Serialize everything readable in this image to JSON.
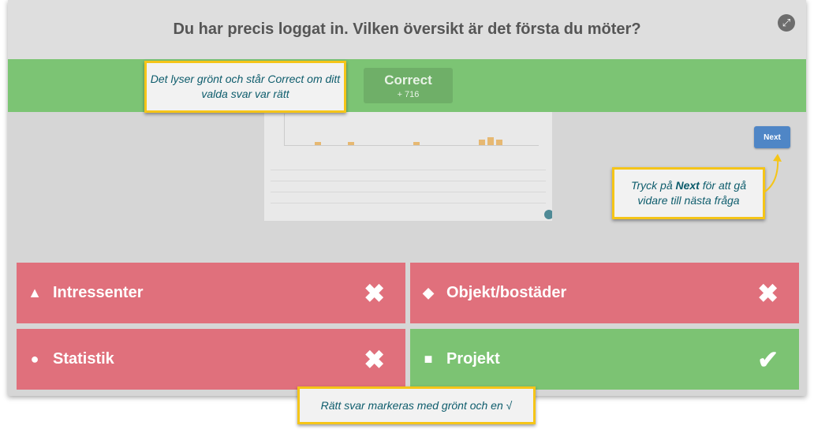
{
  "question": "Du har precis loggat in. Vilken översikt är det första du möter?",
  "result": {
    "label": "Correct",
    "points": "+ 716"
  },
  "next_label": "Next",
  "answers": [
    {
      "shape": "triangle",
      "label": "Intressenter",
      "correct": false
    },
    {
      "shape": "diamond",
      "label": "Objekt/bostäder",
      "correct": false
    },
    {
      "shape": "circle",
      "label": "Statistik",
      "correct": false
    },
    {
      "shape": "square",
      "label": "Projekt",
      "correct": true
    }
  ],
  "callouts": {
    "correct": "Det lyser grönt och står Correct om ditt valda svar var rätt",
    "next_pre": "Tryck på ",
    "next_bold": "Next",
    "next_post": " för att gå vidare till nästa fråga",
    "answer": "Rätt svar markeras med grönt och en √"
  },
  "colors": {
    "wrong": "#e0707c",
    "right": "#7cc373",
    "band": "#7cc474",
    "callout_border": "#f5c518"
  }
}
